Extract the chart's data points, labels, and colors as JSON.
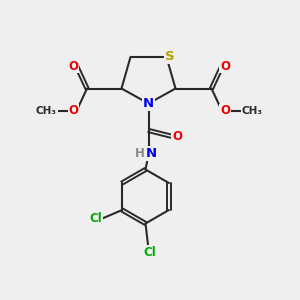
{
  "bg_color": "#efefef",
  "bond_color": "#2a2a2a",
  "bond_width": 1.5,
  "atom_colors": {
    "S": "#b8a000",
    "N": "#0000ee",
    "O": "#ee0000",
    "Cl": "#00aa00",
    "C": "#2a2a2a",
    "H": "#888888"
  },
  "font_size": 8.5
}
